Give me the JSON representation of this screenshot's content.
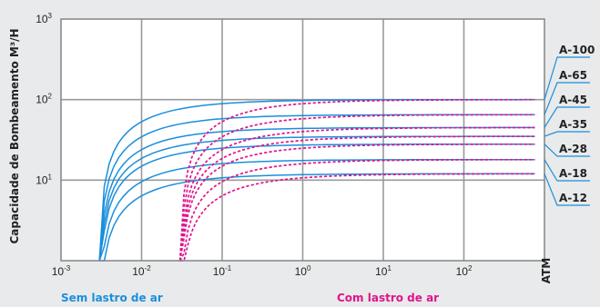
{
  "chart_data": {
    "type": "line",
    "title": "",
    "ylabel": "Capacidade de Bombeamento M³/H",
    "xlabel": "",
    "x_scale": "log",
    "y_scale": "log",
    "x_ticks": [
      {
        "base": "10",
        "exp": "-3"
      },
      {
        "base": "10",
        "exp": "-2"
      },
      {
        "base": "10",
        "exp": "-1"
      },
      {
        "base": "10",
        "exp": "0"
      },
      {
        "base": "10",
        "exp": "1"
      },
      {
        "base": "10",
        "exp": "2"
      }
    ],
    "x_end_label": "ATM",
    "xlim": [
      0.001,
      760
    ],
    "y_ticks": [
      {
        "base": "10",
        "exp": "1"
      },
      {
        "base": "10",
        "exp": "2"
      },
      {
        "base": "10",
        "exp": "3"
      }
    ],
    "ylim": [
      1,
      1000
    ],
    "grid": true,
    "grid_color": "#9a9a9a",
    "groups": [
      {
        "name": "Sem lastro de ar",
        "color": "#1a8fdc",
        "style": "solid",
        "start_x": 0.003
      },
      {
        "name": "Com lastro de ar",
        "color": "#e0148c",
        "style": "dashed",
        "start_x": 0.03
      }
    ],
    "series": [
      {
        "name": "A-100",
        "max_flow": 100
      },
      {
        "name": "A-65",
        "max_flow": 65
      },
      {
        "name": "A-45",
        "max_flow": 45
      },
      {
        "name": "A-35",
        "max_flow": 35
      },
      {
        "name": "A-28",
        "max_flow": 28
      },
      {
        "name": "A-18",
        "max_flow": 18
      },
      {
        "name": "A-12",
        "max_flow": 12
      }
    ],
    "legend_series": [
      "A-100",
      "A-65",
      "A-45",
      "A-35",
      "A-28",
      "A-18",
      "A-12"
    ]
  }
}
